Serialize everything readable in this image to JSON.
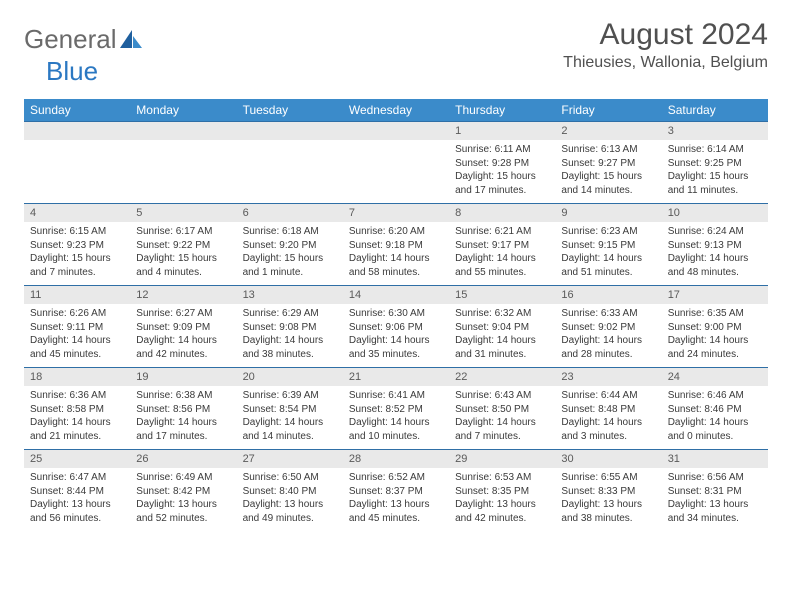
{
  "brand": {
    "part1": "General",
    "part2": "Blue"
  },
  "title": "August 2024",
  "location": "Thieusies, Wallonia, Belgium",
  "colors": {
    "header_bg": "#3b8bca",
    "header_fg": "#ffffff",
    "row_border": "#2f6fa6",
    "daynum_bg": "#e9e9e9",
    "text": "#3a3a3a",
    "title": "#505050",
    "logo_gray": "#6a6a6a",
    "logo_blue": "#2b78c2"
  },
  "fonts": {
    "body_pt": 10,
    "daynum_pt": 11,
    "dayhead_pt": 12,
    "title_pt": 30,
    "location_pt": 16
  },
  "day_names": [
    "Sunday",
    "Monday",
    "Tuesday",
    "Wednesday",
    "Thursday",
    "Friday",
    "Saturday"
  ],
  "weeks": [
    [
      null,
      null,
      null,
      null,
      {
        "n": "1",
        "sunrise": "Sunrise: 6:11 AM",
        "sunset": "Sunset: 9:28 PM",
        "daylight": "Daylight: 15 hours and 17 minutes."
      },
      {
        "n": "2",
        "sunrise": "Sunrise: 6:13 AM",
        "sunset": "Sunset: 9:27 PM",
        "daylight": "Daylight: 15 hours and 14 minutes."
      },
      {
        "n": "3",
        "sunrise": "Sunrise: 6:14 AM",
        "sunset": "Sunset: 9:25 PM",
        "daylight": "Daylight: 15 hours and 11 minutes."
      }
    ],
    [
      {
        "n": "4",
        "sunrise": "Sunrise: 6:15 AM",
        "sunset": "Sunset: 9:23 PM",
        "daylight": "Daylight: 15 hours and 7 minutes."
      },
      {
        "n": "5",
        "sunrise": "Sunrise: 6:17 AM",
        "sunset": "Sunset: 9:22 PM",
        "daylight": "Daylight: 15 hours and 4 minutes."
      },
      {
        "n": "6",
        "sunrise": "Sunrise: 6:18 AM",
        "sunset": "Sunset: 9:20 PM",
        "daylight": "Daylight: 15 hours and 1 minute."
      },
      {
        "n": "7",
        "sunrise": "Sunrise: 6:20 AM",
        "sunset": "Sunset: 9:18 PM",
        "daylight": "Daylight: 14 hours and 58 minutes."
      },
      {
        "n": "8",
        "sunrise": "Sunrise: 6:21 AM",
        "sunset": "Sunset: 9:17 PM",
        "daylight": "Daylight: 14 hours and 55 minutes."
      },
      {
        "n": "9",
        "sunrise": "Sunrise: 6:23 AM",
        "sunset": "Sunset: 9:15 PM",
        "daylight": "Daylight: 14 hours and 51 minutes."
      },
      {
        "n": "10",
        "sunrise": "Sunrise: 6:24 AM",
        "sunset": "Sunset: 9:13 PM",
        "daylight": "Daylight: 14 hours and 48 minutes."
      }
    ],
    [
      {
        "n": "11",
        "sunrise": "Sunrise: 6:26 AM",
        "sunset": "Sunset: 9:11 PM",
        "daylight": "Daylight: 14 hours and 45 minutes."
      },
      {
        "n": "12",
        "sunrise": "Sunrise: 6:27 AM",
        "sunset": "Sunset: 9:09 PM",
        "daylight": "Daylight: 14 hours and 42 minutes."
      },
      {
        "n": "13",
        "sunrise": "Sunrise: 6:29 AM",
        "sunset": "Sunset: 9:08 PM",
        "daylight": "Daylight: 14 hours and 38 minutes."
      },
      {
        "n": "14",
        "sunrise": "Sunrise: 6:30 AM",
        "sunset": "Sunset: 9:06 PM",
        "daylight": "Daylight: 14 hours and 35 minutes."
      },
      {
        "n": "15",
        "sunrise": "Sunrise: 6:32 AM",
        "sunset": "Sunset: 9:04 PM",
        "daylight": "Daylight: 14 hours and 31 minutes."
      },
      {
        "n": "16",
        "sunrise": "Sunrise: 6:33 AM",
        "sunset": "Sunset: 9:02 PM",
        "daylight": "Daylight: 14 hours and 28 minutes."
      },
      {
        "n": "17",
        "sunrise": "Sunrise: 6:35 AM",
        "sunset": "Sunset: 9:00 PM",
        "daylight": "Daylight: 14 hours and 24 minutes."
      }
    ],
    [
      {
        "n": "18",
        "sunrise": "Sunrise: 6:36 AM",
        "sunset": "Sunset: 8:58 PM",
        "daylight": "Daylight: 14 hours and 21 minutes."
      },
      {
        "n": "19",
        "sunrise": "Sunrise: 6:38 AM",
        "sunset": "Sunset: 8:56 PM",
        "daylight": "Daylight: 14 hours and 17 minutes."
      },
      {
        "n": "20",
        "sunrise": "Sunrise: 6:39 AM",
        "sunset": "Sunset: 8:54 PM",
        "daylight": "Daylight: 14 hours and 14 minutes."
      },
      {
        "n": "21",
        "sunrise": "Sunrise: 6:41 AM",
        "sunset": "Sunset: 8:52 PM",
        "daylight": "Daylight: 14 hours and 10 minutes."
      },
      {
        "n": "22",
        "sunrise": "Sunrise: 6:43 AM",
        "sunset": "Sunset: 8:50 PM",
        "daylight": "Daylight: 14 hours and 7 minutes."
      },
      {
        "n": "23",
        "sunrise": "Sunrise: 6:44 AM",
        "sunset": "Sunset: 8:48 PM",
        "daylight": "Daylight: 14 hours and 3 minutes."
      },
      {
        "n": "24",
        "sunrise": "Sunrise: 6:46 AM",
        "sunset": "Sunset: 8:46 PM",
        "daylight": "Daylight: 14 hours and 0 minutes."
      }
    ],
    [
      {
        "n": "25",
        "sunrise": "Sunrise: 6:47 AM",
        "sunset": "Sunset: 8:44 PM",
        "daylight": "Daylight: 13 hours and 56 minutes."
      },
      {
        "n": "26",
        "sunrise": "Sunrise: 6:49 AM",
        "sunset": "Sunset: 8:42 PM",
        "daylight": "Daylight: 13 hours and 52 minutes."
      },
      {
        "n": "27",
        "sunrise": "Sunrise: 6:50 AM",
        "sunset": "Sunset: 8:40 PM",
        "daylight": "Daylight: 13 hours and 49 minutes."
      },
      {
        "n": "28",
        "sunrise": "Sunrise: 6:52 AM",
        "sunset": "Sunset: 8:37 PM",
        "daylight": "Daylight: 13 hours and 45 minutes."
      },
      {
        "n": "29",
        "sunrise": "Sunrise: 6:53 AM",
        "sunset": "Sunset: 8:35 PM",
        "daylight": "Daylight: 13 hours and 42 minutes."
      },
      {
        "n": "30",
        "sunrise": "Sunrise: 6:55 AM",
        "sunset": "Sunset: 8:33 PM",
        "daylight": "Daylight: 13 hours and 38 minutes."
      },
      {
        "n": "31",
        "sunrise": "Sunrise: 6:56 AM",
        "sunset": "Sunset: 8:31 PM",
        "daylight": "Daylight: 13 hours and 34 minutes."
      }
    ]
  ]
}
